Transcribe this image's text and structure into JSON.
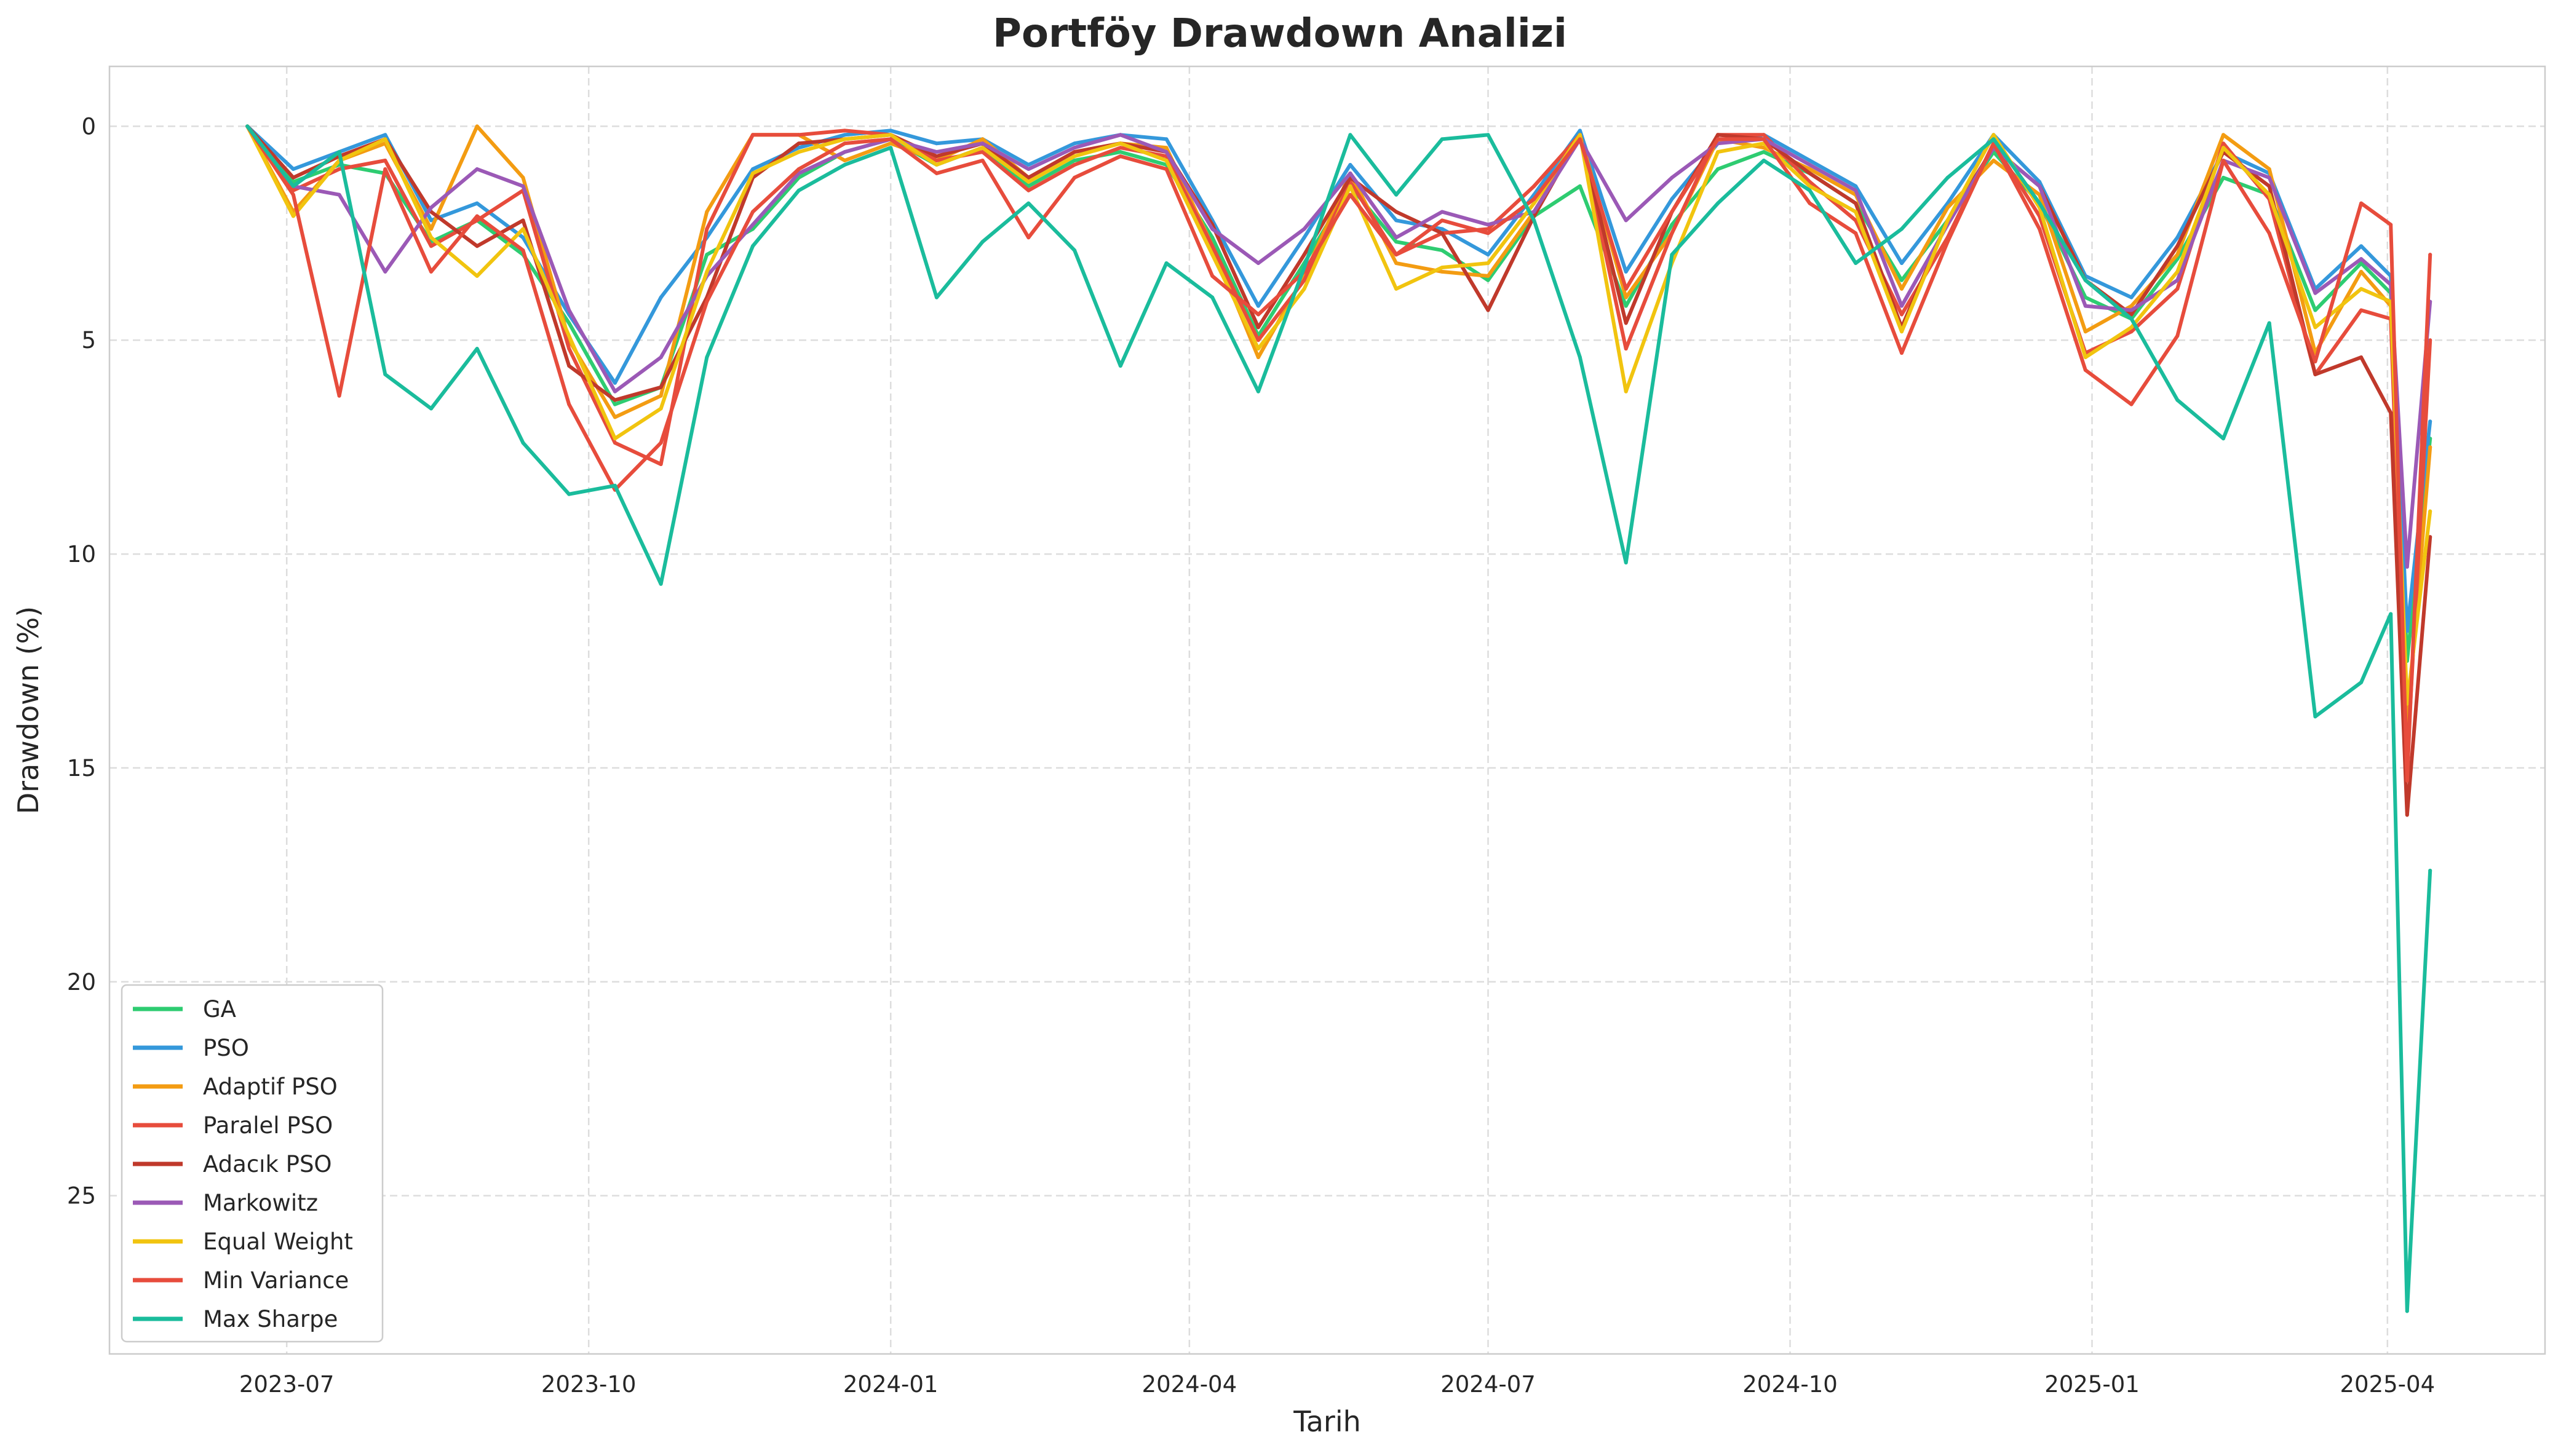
{
  "chart_data": {
    "type": "line",
    "title": "Portföy Drawdown Analizi",
    "xlabel": "Tarih",
    "ylabel": "Drawdown (%)",
    "x_ticks": [
      "2023-07",
      "2023-10",
      "2024-01",
      "2024-04",
      "2024-07",
      "2024-10",
      "2025-01",
      "2025-04"
    ],
    "y_ticks": [
      "0",
      "5",
      "10",
      "15",
      "20",
      "25"
    ],
    "y_inverted": true,
    "ylim": [
      28.7,
      -1.4
    ],
    "xlim": [
      "2023-05-08",
      "2025-05-19"
    ],
    "grid": true,
    "legend_position": "lower-left",
    "x": [
      "2023-06-19",
      "2023-07-03",
      "2023-07-17",
      "2023-07-31",
      "2023-08-14",
      "2023-08-28",
      "2023-09-11",
      "2023-09-25",
      "2023-10-09",
      "2023-10-23",
      "2023-11-06",
      "2023-11-20",
      "2023-12-04",
      "2023-12-18",
      "2024-01-01",
      "2024-01-15",
      "2024-01-29",
      "2024-02-12",
      "2024-02-26",
      "2024-03-11",
      "2024-03-25",
      "2024-04-08",
      "2024-04-22",
      "2024-05-06",
      "2024-05-20",
      "2024-06-03",
      "2024-06-17",
      "2024-07-01",
      "2024-07-15",
      "2024-07-29",
      "2024-08-12",
      "2024-08-26",
      "2024-09-09",
      "2024-09-23",
      "2024-10-07",
      "2024-10-21",
      "2024-11-04",
      "2024-11-18",
      "2024-12-02",
      "2024-12-16",
      "2024-12-30",
      "2025-01-13",
      "2025-01-27",
      "2025-02-10",
      "2025-02-24",
      "2025-03-10",
      "2025-03-24",
      "2025-04-02",
      "2025-04-07",
      "2025-04-14"
    ],
    "series": [
      {
        "name": "GA",
        "color": "#2ecc71",
        "values": [
          0,
          1.3,
          0.9,
          1.1,
          2.7,
          2.2,
          3.0,
          4.6,
          6.5,
          6.1,
          3.0,
          2.4,
          1.2,
          0.6,
          0.3,
          0.9,
          0.5,
          1.4,
          0.8,
          0.6,
          0.9,
          2.6,
          4.9,
          3.2,
          1.4,
          2.7,
          2.9,
          3.6,
          2.1,
          1.4,
          4.2,
          2.3,
          1.0,
          0.6,
          1.1,
          1.8,
          3.6,
          2.2,
          0.6,
          1.8,
          4.0,
          4.5,
          3.1,
          1.2,
          1.6,
          4.3,
          3.2,
          3.9,
          12.5,
          7.3
        ]
      },
      {
        "name": "PSO",
        "color": "#3498db",
        "values": [
          0,
          1.0,
          0.6,
          0.2,
          2.2,
          1.8,
          2.6,
          4.4,
          6.0,
          4.0,
          2.6,
          1.0,
          0.5,
          0.2,
          0.1,
          0.4,
          0.3,
          0.9,
          0.4,
          0.2,
          0.3,
          2.2,
          4.2,
          2.6,
          0.9,
          2.2,
          2.4,
          3.0,
          1.6,
          0.1,
          3.4,
          1.7,
          0.4,
          0.2,
          0.8,
          1.4,
          3.2,
          1.8,
          0.2,
          1.3,
          3.5,
          4.0,
          2.6,
          0.6,
          1.1,
          3.8,
          2.8,
          3.5,
          11.8,
          6.9
        ]
      },
      {
        "name": "Adaptif PSO",
        "color": "#f39c12",
        "values": [
          0,
          2.0,
          0.8,
          0.4,
          2.4,
          0.0,
          1.2,
          5.0,
          6.8,
          6.3,
          2.0,
          0.2,
          0.2,
          0.8,
          0.4,
          0.8,
          0.3,
          1.2,
          0.6,
          0.4,
          0.5,
          2.8,
          5.4,
          3.5,
          1.1,
          3.2,
          3.4,
          3.5,
          2.0,
          0.2,
          4.0,
          2.5,
          0.3,
          0.5,
          1.0,
          1.6,
          3.8,
          1.9,
          0.8,
          1.6,
          4.8,
          4.2,
          3.0,
          0.2,
          1.0,
          5.3,
          3.4,
          4.2,
          14.0,
          7.5
        ]
      },
      {
        "name": "Paralel PSO",
        "color": "#e74c3c",
        "values": [
          0,
          1.5,
          1.0,
          0.8,
          2.8,
          2.2,
          1.5,
          5.2,
          7.4,
          7.9,
          2.4,
          0.2,
          0.2,
          0.1,
          0.2,
          0.8,
          0.6,
          1.5,
          0.9,
          0.5,
          0.7,
          2.8,
          5.0,
          3.6,
          1.3,
          3.0,
          2.5,
          2.4,
          1.4,
          0.2,
          5.2,
          2.5,
          0.2,
          0.2,
          1.3,
          2.2,
          4.4,
          2.6,
          0.4,
          2.1,
          5.3,
          4.8,
          3.8,
          0.4,
          1.7,
          5.8,
          4.3,
          4.5,
          14.9,
          5.0
        ]
      },
      {
        "name": "Adacık PSO",
        "color": "#c0392b",
        "values": [
          0,
          1.2,
          0.7,
          0.3,
          2.0,
          2.8,
          2.2,
          5.6,
          6.4,
          6.1,
          4.0,
          1.2,
          0.4,
          0.3,
          0.2,
          0.7,
          0.4,
          1.2,
          0.6,
          0.4,
          0.6,
          2.3,
          4.7,
          3.0,
          1.2,
          2.0,
          2.5,
          4.3,
          2.1,
          0.2,
          4.6,
          2.0,
          0.2,
          0.3,
          1.1,
          1.8,
          4.7,
          2.2,
          0.5,
          1.4,
          3.6,
          4.4,
          2.8,
          0.6,
          1.4,
          5.8,
          5.4,
          6.7,
          16.1,
          9.6
        ]
      },
      {
        "name": "Markowitz",
        "color": "#9b59b6",
        "values": [
          0,
          1.4,
          1.6,
          3.4,
          1.9,
          1.0,
          1.4,
          4.3,
          6.2,
          5.4,
          3.5,
          2.3,
          1.1,
          0.6,
          0.3,
          0.6,
          0.4,
          1.0,
          0.5,
          0.2,
          0.6,
          2.4,
          3.2,
          2.4,
          1.1,
          2.6,
          2.0,
          2.3,
          2.0,
          0.3,
          2.2,
          1.2,
          0.4,
          0.3,
          0.9,
          1.5,
          4.2,
          2.3,
          0.5,
          1.4,
          4.2,
          4.3,
          3.6,
          0.8,
          1.2,
          3.9,
          3.1,
          3.7,
          10.3,
          4.1
        ]
      },
      {
        "name": "Equal Weight",
        "color": "#f1c40f",
        "values": [
          0,
          2.1,
          0.8,
          0.3,
          2.6,
          3.5,
          2.4,
          4.9,
          7.3,
          6.6,
          3.4,
          1.1,
          0.6,
          0.3,
          0.2,
          0.9,
          0.5,
          1.3,
          0.7,
          0.4,
          0.8,
          3.0,
          5.2,
          3.8,
          1.4,
          3.8,
          3.3,
          3.2,
          1.8,
          0.2,
          6.2,
          3.2,
          0.6,
          0.4,
          1.4,
          2.0,
          4.8,
          2.2,
          0.2,
          1.9,
          5.4,
          4.7,
          3.4,
          0.5,
          1.6,
          4.7,
          3.8,
          4.1,
          13.5,
          9.0
        ]
      },
      {
        "name": "Min Variance",
        "color": "#e74c3c",
        "values": [
          0,
          1.6,
          6.3,
          1.0,
          3.4,
          2.1,
          2.9,
          6.5,
          8.5,
          7.4,
          4.1,
          2.0,
          1.0,
          0.4,
          0.3,
          1.1,
          0.8,
          2.6,
          1.2,
          0.7,
          1.0,
          3.5,
          4.4,
          3.4,
          1.6,
          3.0,
          2.2,
          2.5,
          1.7,
          0.3,
          3.8,
          2.0,
          0.3,
          0.3,
          1.8,
          2.5,
          5.3,
          2.7,
          0.4,
          2.4,
          5.7,
          6.5,
          4.9,
          0.8,
          2.5,
          5.5,
          1.8,
          2.3,
          15.3,
          3.0
        ]
      },
      {
        "name": "Max Sharpe",
        "color": "#1abc9c",
        "values": [
          0,
          1.4,
          0.6,
          5.8,
          6.6,
          5.2,
          7.4,
          8.6,
          8.4,
          10.7,
          5.4,
          2.8,
          1.5,
          0.9,
          0.5,
          4.0,
          2.7,
          1.8,
          2.9,
          5.6,
          3.2,
          4.0,
          6.2,
          3.3,
          0.2,
          1.6,
          0.3,
          0.2,
          2.2,
          5.4,
          10.2,
          3.0,
          1.8,
          0.8,
          1.5,
          3.2,
          2.4,
          1.2,
          0.3,
          1.8,
          3.6,
          4.5,
          6.4,
          7.3,
          4.6,
          13.8,
          13.0,
          11.4,
          27.7,
          17.4
        ]
      }
    ]
  }
}
